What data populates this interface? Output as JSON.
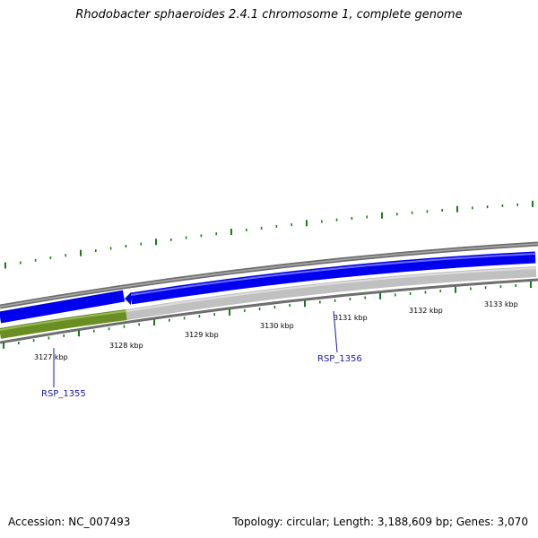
{
  "title": "Rhodobacter sphaeroides 2.4.1 chromosome 1, complete genome",
  "footer": {
    "accession": "Accession: NC_007493",
    "summary": "Topology: circular; Length: 3,188,609 bp; Genes: 3,070"
  },
  "colors": {
    "backbone": "#808080",
    "forward_gene": "#0000ee",
    "reverse_gene_green": "#6b8e23",
    "reverse_gene_gray": "#c0c0c0",
    "tick": "#1a7a1a",
    "gene_label": "#1a1a9c"
  },
  "ticks": [
    {
      "label": "3127 kbp"
    },
    {
      "label": "3128 kbp"
    },
    {
      "label": "3129 kbp"
    },
    {
      "label": "3130 kbp"
    },
    {
      "label": "3131 kbp"
    },
    {
      "label": "3132 kbp"
    },
    {
      "label": "3133 kbp"
    }
  ],
  "genes": [
    {
      "name": "RSP_1355",
      "strand": "reverse",
      "color": "green"
    },
    {
      "name": "RSP_1356",
      "strand": "reverse",
      "color": "gray"
    }
  ]
}
